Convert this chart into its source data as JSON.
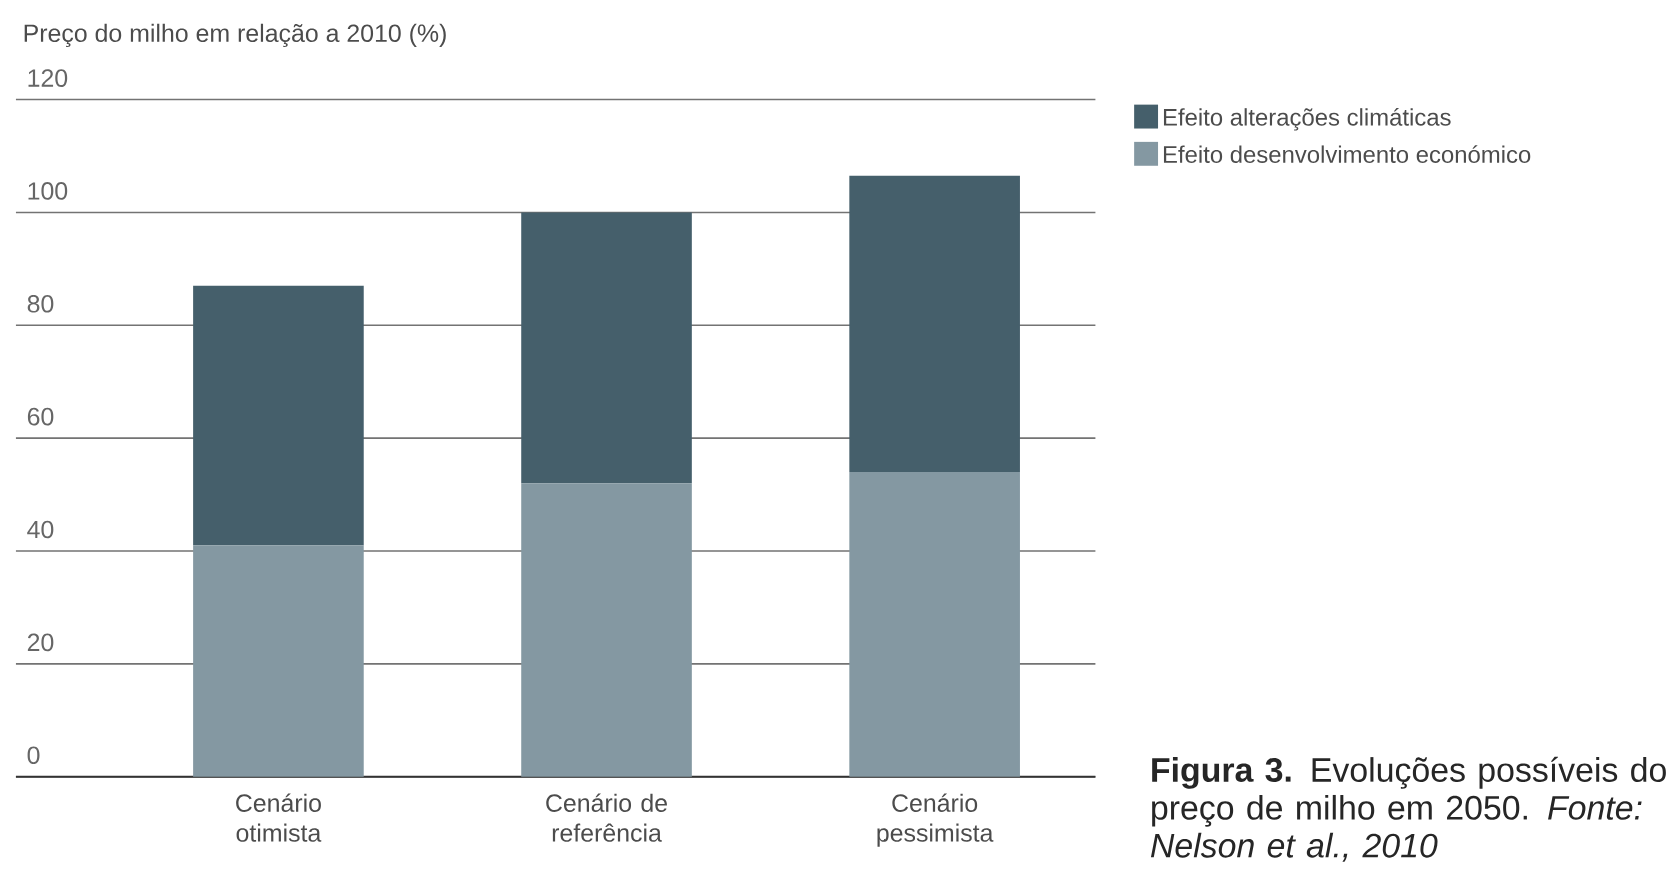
{
  "chart_data": {
    "type": "bar",
    "stacked": true,
    "ylabel": "Preço do milho em relação a 2010 (%)",
    "categories": [
      "Cenário otimista",
      "Cenário de referência",
      "Cenário pessimista"
    ],
    "series": [
      {
        "name": "Efeito desenvolvimento económico",
        "color": "#8498a2",
        "values": [
          41,
          52,
          54
        ]
      },
      {
        "name": "Efeito alterações climáticas",
        "color": "#455f6b",
        "values": [
          46,
          48,
          52.5
        ]
      }
    ],
    "ylim": [
      0,
      120
    ],
    "yticks": [
      0,
      20,
      40,
      60,
      80,
      100,
      120
    ],
    "grid": "y",
    "legend": "top right",
    "annotations": [
      "**Figura 3.** Evoluções possíveis do preço de milho em 2050. *Fonte: Nelson et al., 2010*"
    ]
  }
}
